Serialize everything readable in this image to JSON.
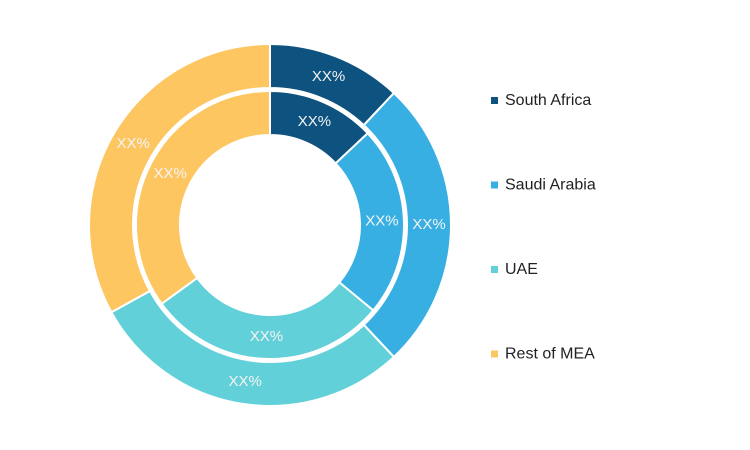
{
  "chart_data": {
    "type": "donut",
    "categories": [
      "South Africa",
      "Saudi Arabia",
      "UAE",
      "Rest of MEA"
    ],
    "colors": [
      "#0e527f",
      "#38afe3",
      "#62d0d8",
      "#fdc661"
    ],
    "series": [
      {
        "values": [
          12,
          26,
          29,
          33
        ],
        "value_labels": [
          "XX%",
          "XX%",
          "XX%",
          "XX%"
        ]
      },
      {
        "values": [
          13,
          23,
          29,
          35
        ],
        "value_labels": [
          "XX%",
          "XX%",
          "XX%",
          "XX%"
        ]
      }
    ],
    "legend": "right"
  }
}
